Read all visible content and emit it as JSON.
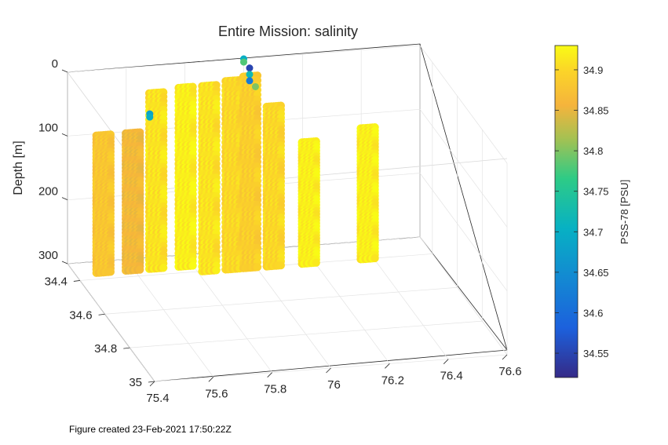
{
  "chart_data": {
    "type": "scatter",
    "title": "Entire Mission: salinity",
    "zlabel": "Depth [m]",
    "xlabel": "",
    "ylabel": "",
    "x_ticks": [
      "75.4",
      "75.6",
      "75.8",
      "76",
      "76.2",
      "76.4",
      "76.6"
    ],
    "x_lim": [
      75.4,
      76.6
    ],
    "y_ticks": [
      "34.4",
      "34.6",
      "34.8",
      "35"
    ],
    "y_lim": [
      34.3,
      35.0
    ],
    "z_ticks": [
      "0",
      "100",
      "200",
      "300"
    ],
    "z_lim": [
      0,
      300
    ],
    "z_reversed": true,
    "grid": true,
    "colorbar": {
      "label": "PSS-78 [PSU]",
      "ticks": [
        "34.55",
        "34.6",
        "34.65",
        "34.7",
        "34.75",
        "34.8",
        "34.85",
        "34.9"
      ],
      "range": [
        34.52,
        34.93
      ],
      "colormap": "parula"
    },
    "profiles": [
      {
        "x": 75.48,
        "y_start": 34.4,
        "y_end": 34.4,
        "z_top": 75,
        "z_bottom": 290,
        "salinity": 34.88
      },
      {
        "x": 75.58,
        "y_start": 34.4,
        "y_end": 34.4,
        "z_top": 75,
        "z_bottom": 290,
        "salinity": 34.86
      },
      {
        "x": 75.66,
        "y_start": 34.4,
        "y_end": 34.4,
        "z_top": 15,
        "z_bottom": 290,
        "salinity": 34.91
      },
      {
        "x": 75.76,
        "y_start": 34.4,
        "y_end": 34.4,
        "z_top": 10,
        "z_bottom": 290,
        "salinity": 34.92
      },
      {
        "x": 75.84,
        "y_start": 34.4,
        "y_end": 34.4,
        "z_top": 10,
        "z_bottom": 300,
        "salinity": 34.91
      },
      {
        "x": 75.92,
        "y_start": 34.4,
        "y_end": 34.4,
        "z_top": 5,
        "z_bottom": 300,
        "salinity": 34.9
      },
      {
        "x": 75.98,
        "y_start": 34.4,
        "y_end": 34.4,
        "z_top": 0,
        "z_bottom": 300,
        "salinity": 34.89
      },
      {
        "x": 76.06,
        "y_start": 34.4,
        "y_end": 34.4,
        "z_top": 50,
        "z_bottom": 300,
        "salinity": 34.9
      },
      {
        "x": 76.18,
        "y_start": 34.4,
        "y_end": 34.4,
        "z_top": 110,
        "z_bottom": 300,
        "salinity": 34.92
      },
      {
        "x": 76.38,
        "y_start": 34.4,
        "y_end": 34.4,
        "z_top": 95,
        "z_bottom": 300,
        "salinity": 34.92
      }
    ],
    "highlighted_points": [
      {
        "x": 75.68,
        "z": 75,
        "salinity": 34.68
      },
      {
        "x": 75.68,
        "z": 80,
        "salinity": 34.7
      },
      {
        "x": 76.0,
        "z": 0,
        "salinity": 34.7
      },
      {
        "x": 76.0,
        "z": 5,
        "salinity": 34.78
      },
      {
        "x": 76.02,
        "z": 15,
        "salinity": 34.55
      },
      {
        "x": 76.02,
        "z": 25,
        "salinity": 34.72
      },
      {
        "x": 76.02,
        "z": 35,
        "salinity": 34.62
      },
      {
        "x": 76.04,
        "z": 45,
        "salinity": 34.8
      }
    ]
  },
  "footer": "Figure created 23-Feb-2021 17:50:22Z",
  "colors": {
    "low": "#3e26a8",
    "mid": "#13beb8",
    "high": "#f9fb15",
    "orange": "#f5b43c"
  }
}
